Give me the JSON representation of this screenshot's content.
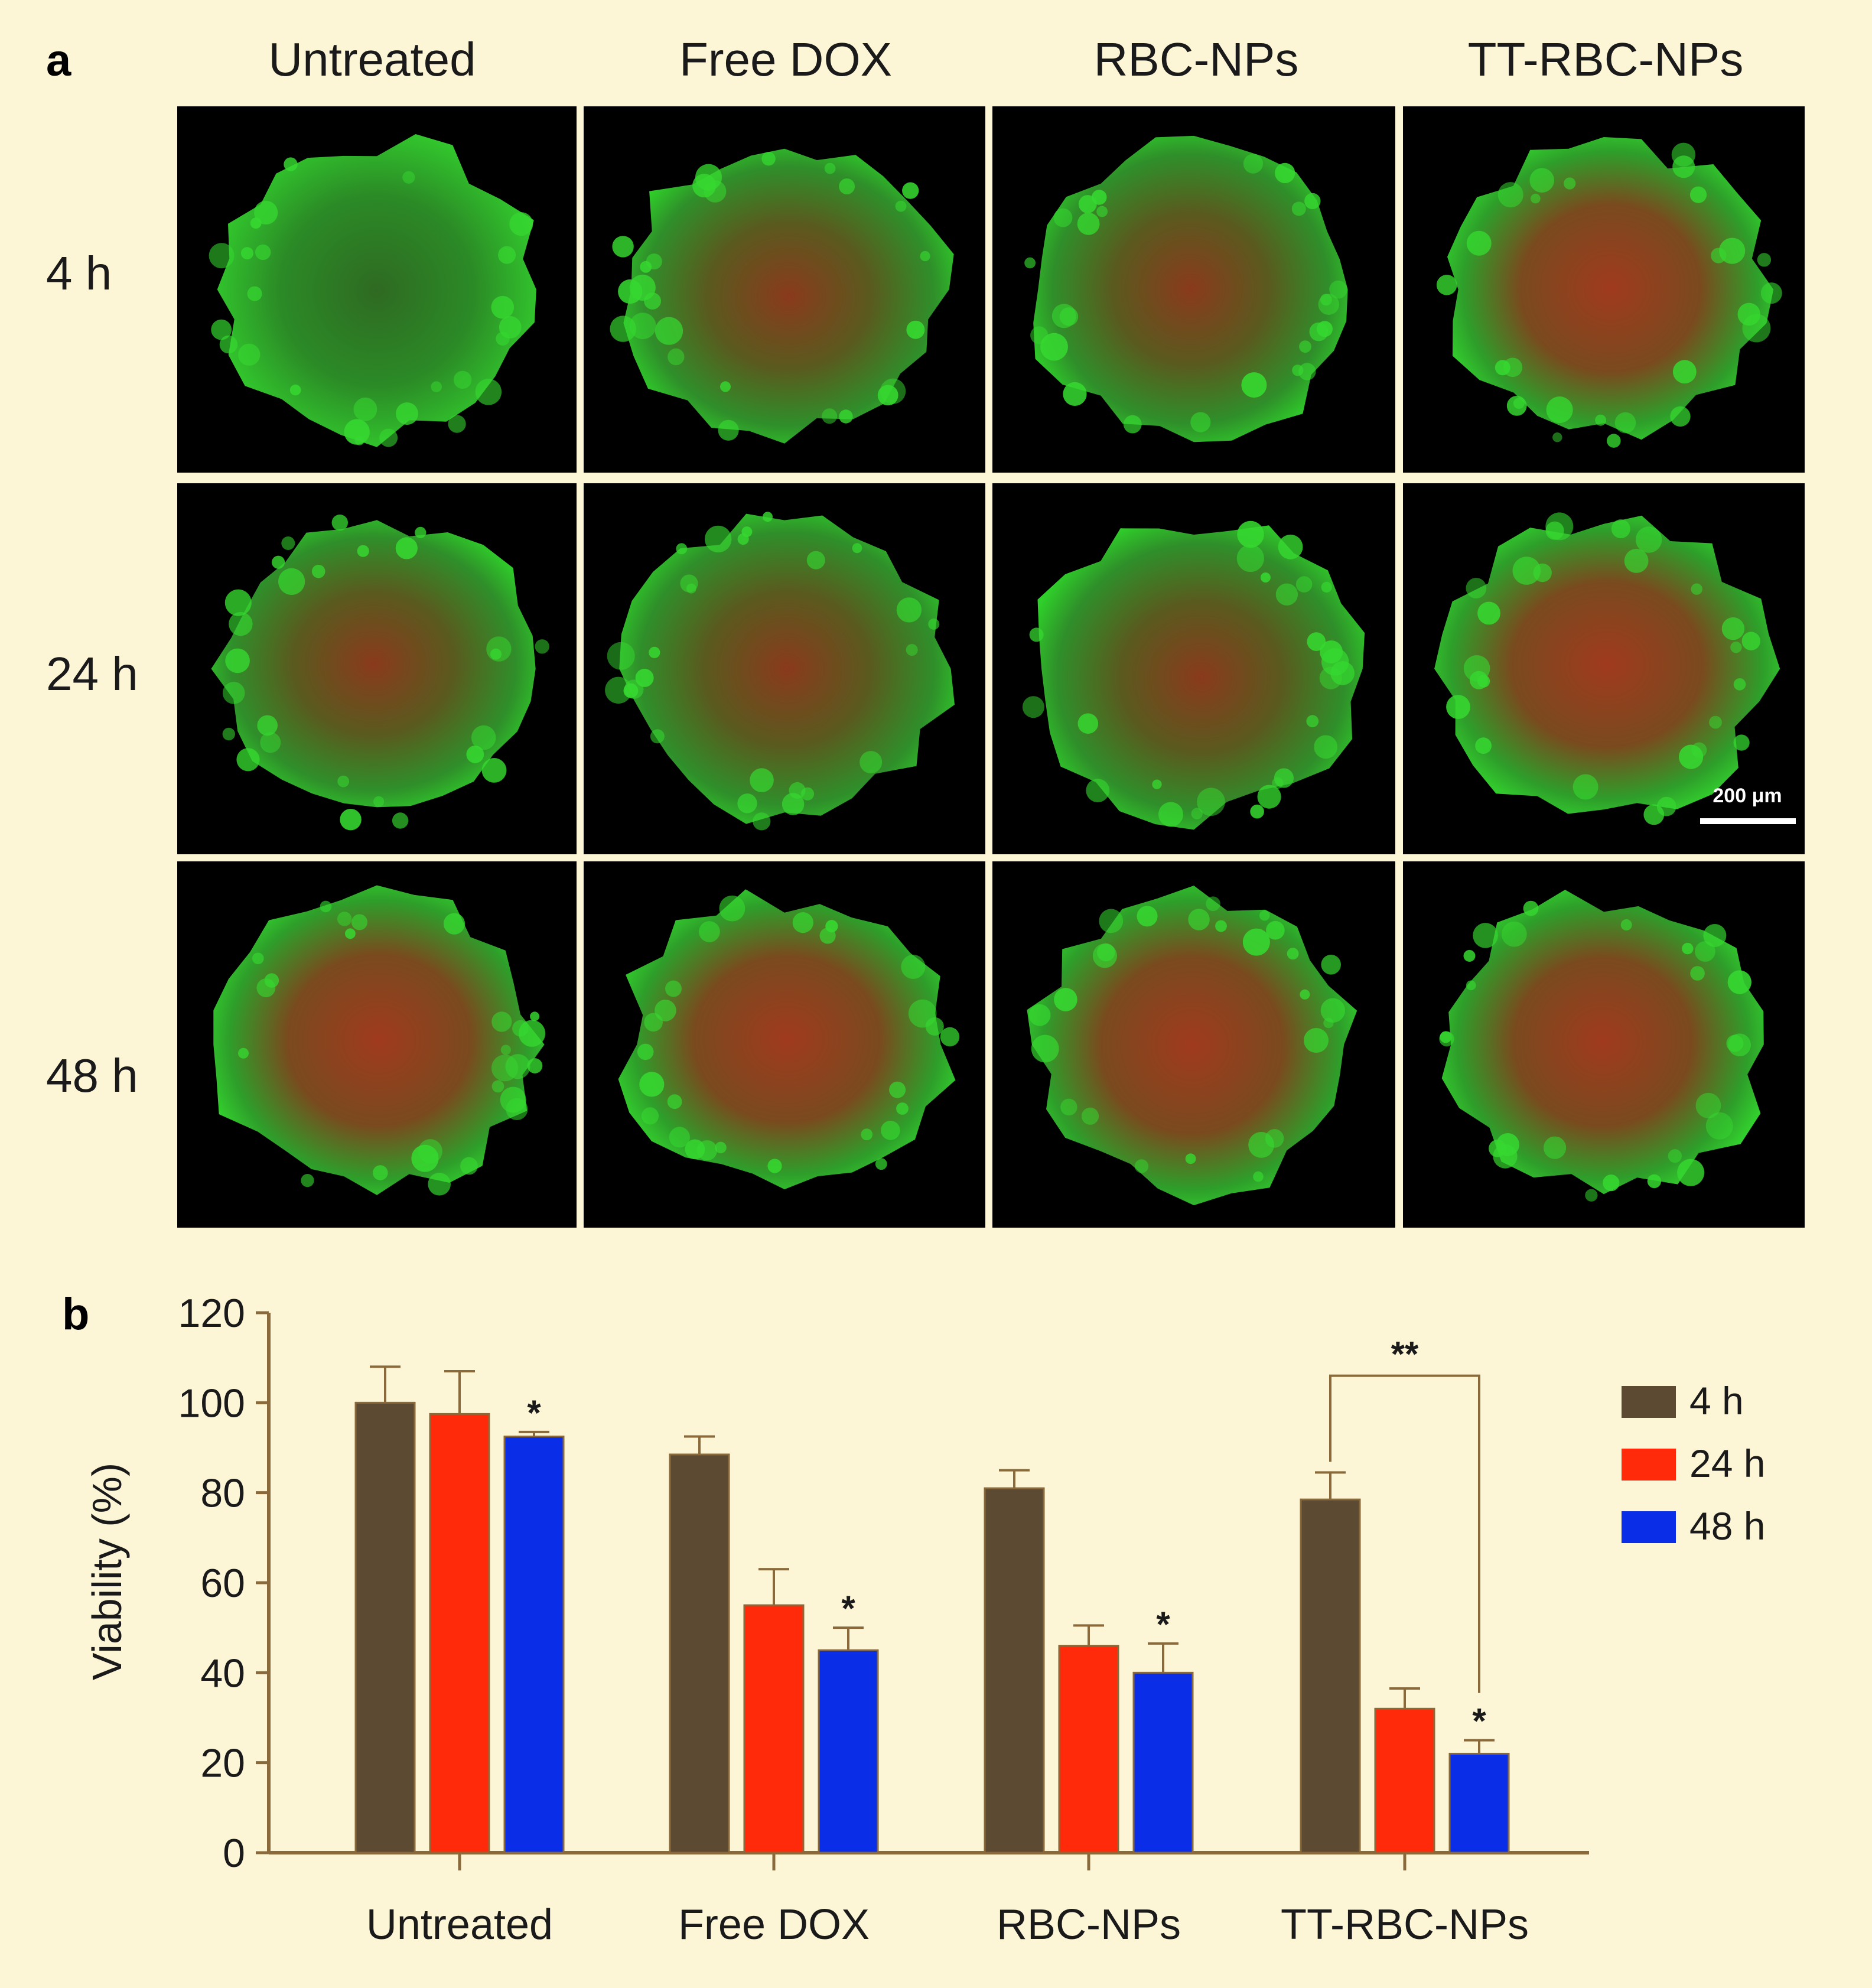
{
  "panel_a": {
    "letter": "a",
    "columns": [
      "Untreated",
      "Free DOX",
      "RBC-NPs",
      "TT-RBC-NPs"
    ],
    "rows": [
      "4 h",
      "24 h",
      "48 h"
    ],
    "scale_bar_label": "200 μm",
    "image_description_colors": {
      "live": "#2ed42a",
      "dead": "#c4301c",
      "background": "#000000"
    }
  },
  "panel_b": {
    "letter": "b"
  },
  "colors": {
    "background": "#fdf6d6",
    "axis": "#8a6a3a"
  },
  "chart_data": {
    "type": "bar",
    "title": "",
    "xlabel": "",
    "ylabel": "Viability (%)",
    "ylim": [
      0,
      120
    ],
    "yticks": [
      "0",
      "20",
      "40",
      "60",
      "80",
      "100",
      "120"
    ],
    "categories": [
      "Untreated",
      "Free DOX",
      "RBC-NPs",
      "TT-RBC-NPs"
    ],
    "series": [
      {
        "name": "4 h",
        "color": "#5c4a32",
        "values": [
          100,
          88.5,
          81,
          78.5
        ],
        "errors": [
          8,
          4,
          4,
          6
        ]
      },
      {
        "name": "24 h",
        "color": "#ff2a0a",
        "values": [
          97.5,
          55,
          46,
          32
        ],
        "errors": [
          9.5,
          8,
          4.5,
          4.5
        ]
      },
      {
        "name": "48 h",
        "color": "#0a2ee8",
        "values": [
          92.5,
          45,
          40,
          22
        ],
        "errors": [
          1,
          5,
          6.5,
          3
        ]
      }
    ],
    "significance": {
      "single": "*",
      "single_marked_48h": [
        true,
        true,
        true,
        true
      ],
      "bracket_label": "**"
    },
    "legend_placement": "right",
    "grid": false
  }
}
